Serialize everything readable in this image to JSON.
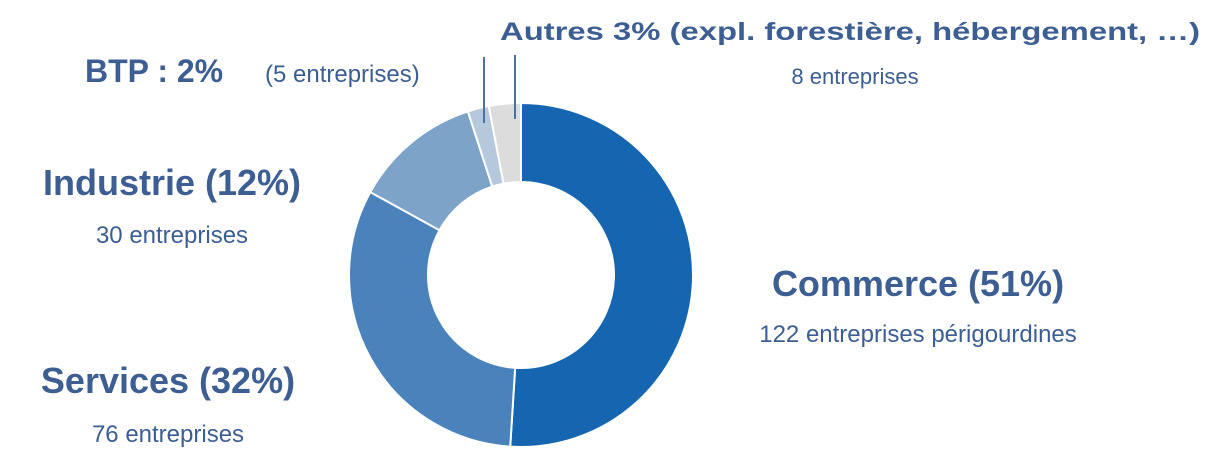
{
  "chart_data": {
    "type": "donut",
    "categories": [
      "Commerce (51%)",
      "Services (32%)",
      "Industrie (12%)",
      "BTP : 2%",
      "Autres 3% (expl. forestière, hébergement, …)"
    ],
    "notes": [
      "122 entreprises périgourdines",
      "76 entreprises",
      "30 entreprises",
      "(5 entreprises)",
      "8 entreprises"
    ],
    "values": [
      51,
      32,
      12,
      2,
      3
    ],
    "colors": [
      "#1565b0",
      "#4a82bc",
      "#7ea3c9",
      "#b5c8dc",
      "#dcdcdc"
    ]
  }
}
